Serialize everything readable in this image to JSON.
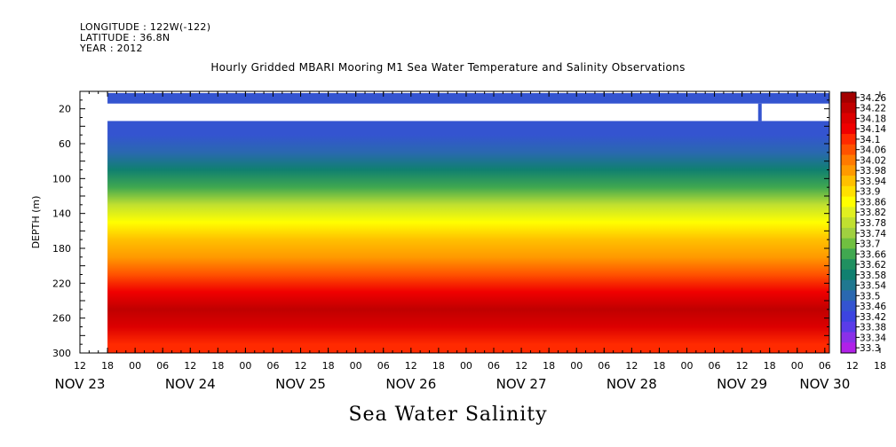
{
  "header": {
    "longitude": "LONGITUDE : 122W(-122)",
    "latitude": "LATITUDE : 36.8N",
    "year": "YEAR : 2012"
  },
  "title": "Hourly Gridded MBARI Mooring M1 Sea Water Temperature and Salinity Observations",
  "footer": "Sea Water Salinity",
  "chart_data": {
    "type": "heatmap",
    "title": "Hourly Gridded MBARI Mooring M1 Sea Water Temperature and Salinity Observations",
    "xlabel": "",
    "ylabel": "DEPTH (m)",
    "x_range_hours": [
      0,
      163
    ],
    "hour_ticks": [
      "12",
      "18",
      "00",
      "06",
      "12",
      "18",
      "00",
      "06",
      "12",
      "18",
      "00",
      "06",
      "12",
      "18",
      "00",
      "06",
      "12",
      "18",
      "00",
      "06",
      "12",
      "18",
      "00",
      "06",
      "12",
      "18",
      "00",
      "06",
      "12",
      "18",
      "00",
      "06",
      "12",
      "18",
      "00",
      "06",
      "12",
      "18",
      "00",
      "06",
      "12",
      "18",
      "00",
      "06",
      "12",
      "18",
      "00",
      "06",
      "12",
      "18",
      "00",
      "06",
      "12",
      "18",
      "00",
      "06",
      "12"
    ],
    "day_labels": [
      {
        "label": "NOV 23",
        "hour": 0
      },
      {
        "label": "NOV 24",
        "hour": 24
      },
      {
        "label": "NOV 25",
        "hour": 48
      },
      {
        "label": "NOV 26",
        "hour": 72
      },
      {
        "label": "NOV 27",
        "hour": 96
      },
      {
        "label": "NOV 28",
        "hour": 120
      },
      {
        "label": "NOV 29",
        "hour": 144
      },
      {
        "label": "NOV 30",
        "hour": 162
      }
    ],
    "y_ticks": [
      20,
      60,
      100,
      140,
      180,
      220,
      260,
      300
    ],
    "ylim": [
      300,
      0
    ],
    "data_start_hour": 6,
    "no_data_depths": [
      [
        0,
        2
      ],
      [
        14,
        34
      ]
    ],
    "colorbar_levels": [
      "34.26",
      "34.22",
      "34.18",
      "34.14",
      "34.1",
      "34.06",
      "34.02",
      "33.98",
      "33.94",
      "33.9",
      "33.86",
      "33.82",
      "33.78",
      "33.74",
      "33.7",
      "33.66",
      "33.62",
      "33.58",
      "33.54",
      "33.5",
      "33.46",
      "33.42",
      "33.38",
      "33.34",
      "33.3"
    ],
    "colorbar_colors": [
      "#a30000",
      "#c00000",
      "#dc0000",
      "#f00000",
      "#ff2a00",
      "#ff5200",
      "#ff7a00",
      "#ff9a00",
      "#ffc000",
      "#ffe000",
      "#ffff00",
      "#e0f020",
      "#c0e030",
      "#a0d040",
      "#70c040",
      "#40a850",
      "#209060",
      "#108070",
      "#207890",
      "#2a68b0",
      "#3454d0",
      "#3c44e0",
      "#5a3ce8",
      "#8a30e8",
      "#b020e8"
    ],
    "depth_profile": [
      {
        "depth": 2,
        "value": 33.44
      },
      {
        "depth": 34,
        "value": 33.44
      },
      {
        "depth": 50,
        "value": 33.45
      },
      {
        "depth": 70,
        "value": 33.5
      },
      {
        "depth": 90,
        "value": 33.58
      },
      {
        "depth": 110,
        "value": 33.66
      },
      {
        "depth": 130,
        "value": 33.76
      },
      {
        "depth": 150,
        "value": 33.86
      },
      {
        "depth": 170,
        "value": 33.94
      },
      {
        "depth": 190,
        "value": 33.99
      },
      {
        "depth": 210,
        "value": 34.05
      },
      {
        "depth": 230,
        "value": 34.14
      },
      {
        "depth": 250,
        "value": 34.2
      },
      {
        "depth": 270,
        "value": 34.17
      },
      {
        "depth": 290,
        "value": 34.12
      },
      {
        "depth": 300,
        "value": 34.1
      }
    ]
  }
}
